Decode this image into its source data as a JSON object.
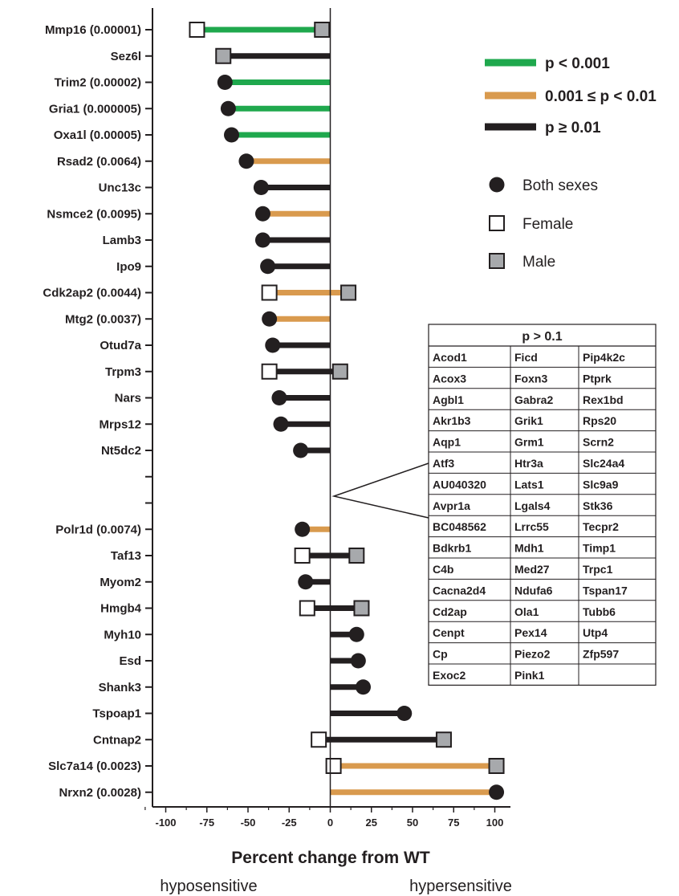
{
  "chart_data": {
    "type": "lollipop",
    "xlabel": "Percent change from WT",
    "xlim": [
      -105,
      105
    ],
    "xticks": [
      -100,
      -75,
      -50,
      -25,
      0,
      25,
      50,
      75,
      100
    ],
    "direction_labels": {
      "left": "hyposensitive",
      "right": "hypersensitive"
    },
    "colors": {
      "p_lt_0.001": "#1fa84d",
      "p_0.001_0.01": "#d99a4e",
      "p_ge_0.01": "#231f20",
      "male": "#a7a9ac",
      "female": "#ffffff",
      "both": "#231f20"
    },
    "legend": {
      "lines": [
        {
          "label": "p < 0.001",
          "category": "p_lt_0.001"
        },
        {
          "label": "0.001 ≤ p < 0.01",
          "category": "p_0.001_0.01"
        },
        {
          "label": "p ≥ 0.01",
          "category": "p_ge_0.01"
        }
      ],
      "markers": [
        {
          "label": "Both sexes",
          "shape": "both"
        },
        {
          "label": "Female",
          "shape": "female"
        },
        {
          "label": "Male",
          "shape": "male"
        }
      ]
    },
    "genes": [
      {
        "label": "Mmp16 (0.00001)",
        "sig": "p_lt_0.001",
        "female": -81,
        "male": -5
      },
      {
        "label": "Sez6l",
        "sig": "p_ge_0.01",
        "male": -65
      },
      {
        "label": "Trim2 (0.00002)",
        "sig": "p_lt_0.001",
        "both": -64
      },
      {
        "label": "Gria1 (0.000005)",
        "sig": "p_lt_0.001",
        "both": -62
      },
      {
        "label": "Oxa1l (0.00005)",
        "sig": "p_lt_0.001",
        "both": -60
      },
      {
        "label": "Rsad2 (0.0064)",
        "sig": "p_0.001_0.01",
        "both": -51
      },
      {
        "label": "Unc13c",
        "sig": "p_ge_0.01",
        "both": -42
      },
      {
        "label": "Nsmce2 (0.0095)",
        "sig": "p_0.001_0.01",
        "both": -41
      },
      {
        "label": "Lamb3",
        "sig": "p_ge_0.01",
        "both": -41
      },
      {
        "label": "Ipo9",
        "sig": "p_ge_0.01",
        "both": -38
      },
      {
        "label": "Cdk2ap2 (0.0044)",
        "sig": "p_0.001_0.01",
        "female": -37,
        "male": 11
      },
      {
        "label": "Mtg2 (0.0037)",
        "sig": "p_0.001_0.01",
        "both": -37
      },
      {
        "label": "Otud7a",
        "sig": "p_ge_0.01",
        "both": -35
      },
      {
        "label": "Trpm3",
        "sig": "p_ge_0.01",
        "female": -37,
        "male": 6
      },
      {
        "label": "Nars",
        "sig": "p_ge_0.01",
        "both": -31
      },
      {
        "label": "Mrps12",
        "sig": "p_ge_0.01",
        "both": -30
      },
      {
        "label": "Nt5dc2",
        "sig": "p_ge_0.01",
        "both": -18
      },
      {
        "label": "",
        "sig": "none"
      },
      {
        "label": "",
        "sig": "none"
      },
      {
        "label": "Polr1d (0.0074)",
        "sig": "p_0.001_0.01",
        "both": -17
      },
      {
        "label": "Taf13",
        "sig": "p_ge_0.01",
        "female": -17,
        "male": 16
      },
      {
        "label": "Myom2",
        "sig": "p_ge_0.01",
        "both": -15
      },
      {
        "label": "Hmgb4",
        "sig": "p_ge_0.01",
        "female": -14,
        "male": 19
      },
      {
        "label": "Myh10",
        "sig": "p_ge_0.01",
        "both": 16
      },
      {
        "label": "Esd",
        "sig": "p_ge_0.01",
        "both": 17
      },
      {
        "label": "Shank3",
        "sig": "p_ge_0.01",
        "both": 20
      },
      {
        "label": "Tspoap1",
        "sig": "p_ge_0.01",
        "both": 45
      },
      {
        "label": "Cntnap2",
        "sig": "p_ge_0.01",
        "female": -7,
        "male": 69
      },
      {
        "label": "Slc7a14 (0.0023)",
        "sig": "p_0.001_0.01",
        "female": 2,
        "male": 101
      },
      {
        "label": "Nrxn2 (0.0028)",
        "sig": "p_0.001_0.01",
        "both": 101
      }
    ],
    "table": {
      "title": "p > 0.1",
      "rows": [
        [
          "Acod1",
          "Ficd",
          "Pip4k2c"
        ],
        [
          "Acox3",
          "Foxn3",
          "Ptprk"
        ],
        [
          "Agbl1",
          "Gabra2",
          "Rex1bd"
        ],
        [
          "Akr1b3",
          "Grik1",
          "Rps20"
        ],
        [
          "Aqp1",
          "Grm1",
          "Scrn2"
        ],
        [
          "Atf3",
          "Htr3a",
          "Slc24a4"
        ],
        [
          "AU040320",
          "Lats1",
          "Slc9a9"
        ],
        [
          "Avpr1a",
          "Lgals4",
          "Stk36"
        ],
        [
          "BC048562",
          "Lrrc55",
          "Tecpr2"
        ],
        [
          "Bdkrb1",
          "Mdh1",
          "Timp1"
        ],
        [
          "C4b",
          "Med27",
          "Trpc1"
        ],
        [
          "Cacna2d4",
          "Ndufa6",
          "Tspan17"
        ],
        [
          "Cd2ap",
          "Ola1",
          "Tubb6"
        ],
        [
          "Cenpt",
          "Pex14",
          "Utp4"
        ],
        [
          "Cp",
          "Piezo2",
          "Zfp597"
        ],
        [
          "Exoc2",
          "Pink1",
          ""
        ]
      ]
    }
  }
}
